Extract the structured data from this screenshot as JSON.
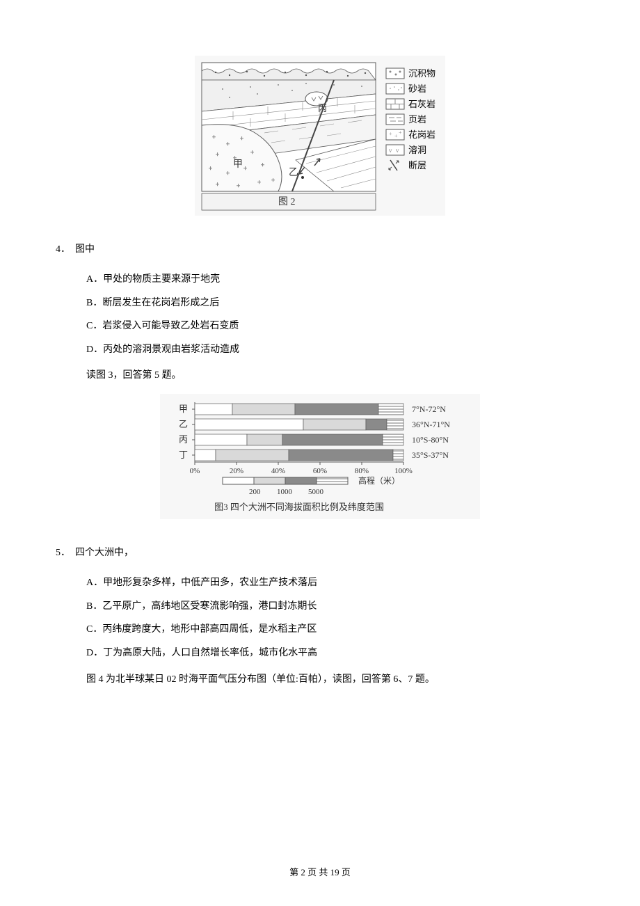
{
  "figure2": {
    "caption": "图 2",
    "labels": {
      "jia": "甲",
      "yi": "乙",
      "bing": "丙"
    },
    "legend": [
      {
        "name": "沉积物"
      },
      {
        "name": "砂岩"
      },
      {
        "name": "石灰岩"
      },
      {
        "name": "页岩"
      },
      {
        "name": "花岗岩"
      },
      {
        "name": "溶洞"
      },
      {
        "name": "断层"
      }
    ],
    "colors": {
      "stroke": "#5a5a5a",
      "fill_bg": "#f3f3f3",
      "text": "#333333"
    }
  },
  "q4": {
    "stem_num": "4．",
    "stem_text": "图中",
    "options": {
      "A": "A．甲处的物质主要来源于地壳",
      "B": "B．断层发生在花岗岩形成之后",
      "C": "C．岩浆侵入可能导致乙处岩石变质",
      "D": "D．丙处的溶洞景观由岩浆活动造成"
    }
  },
  "instruction_5": "读图 3，回答第 5 题。",
  "figure3": {
    "caption": "图3 四个大洲不同海拔面积比例及纬度范围",
    "type": "stacked-bar",
    "axis": {
      "ticks": [
        "0%",
        "20%",
        "40%",
        "60%",
        "80%",
        "100%"
      ],
      "tick_values": [
        0,
        20,
        40,
        60,
        80,
        100
      ]
    },
    "legend": {
      "label": "高程（米）",
      "levels": [
        "200",
        "1000",
        "5000"
      ],
      "fills": [
        "#ffffff",
        "#d9d9d9",
        "#8a8a8a",
        "#ffffff"
      ],
      "hatched_last": true
    },
    "rows": [
      {
        "name": "甲",
        "lat": "7°N-72°N",
        "segments": [
          18,
          30,
          40,
          12
        ]
      },
      {
        "name": "乙",
        "lat": "36°N-71°N",
        "segments": [
          52,
          30,
          10,
          8
        ]
      },
      {
        "name": "丙",
        "lat": "10°S-80°N",
        "segments": [
          25,
          17,
          48,
          10
        ]
      },
      {
        "name": "丁",
        "lat": "35°S-37°N",
        "segments": [
          10,
          35,
          50,
          5
        ]
      }
    ],
    "colors": {
      "stroke": "#5a5a5a",
      "bg": "#f3f3f3",
      "text": "#333333"
    }
  },
  "q5": {
    "stem_num": "5．",
    "stem_text": "四个大洲中，",
    "options": {
      "A": "A．甲地形复杂多样，中低产田多，农业生产技术落后",
      "B": "B．乙平原广，高纬地区受寒流影响强，港口封冻期长",
      "C": "C．丙纬度跨度大，地形中部高四周低，是水稻主产区",
      "D": "D．丁为高原大陆，人口自然增长率低，城市化水平高"
    }
  },
  "instruction_67": "图 4 为北半球某日 02 时海平面气压分布图（单位:百帕），读图，回答第 6、7 题。",
  "footer": "第 2 页 共 19 页"
}
